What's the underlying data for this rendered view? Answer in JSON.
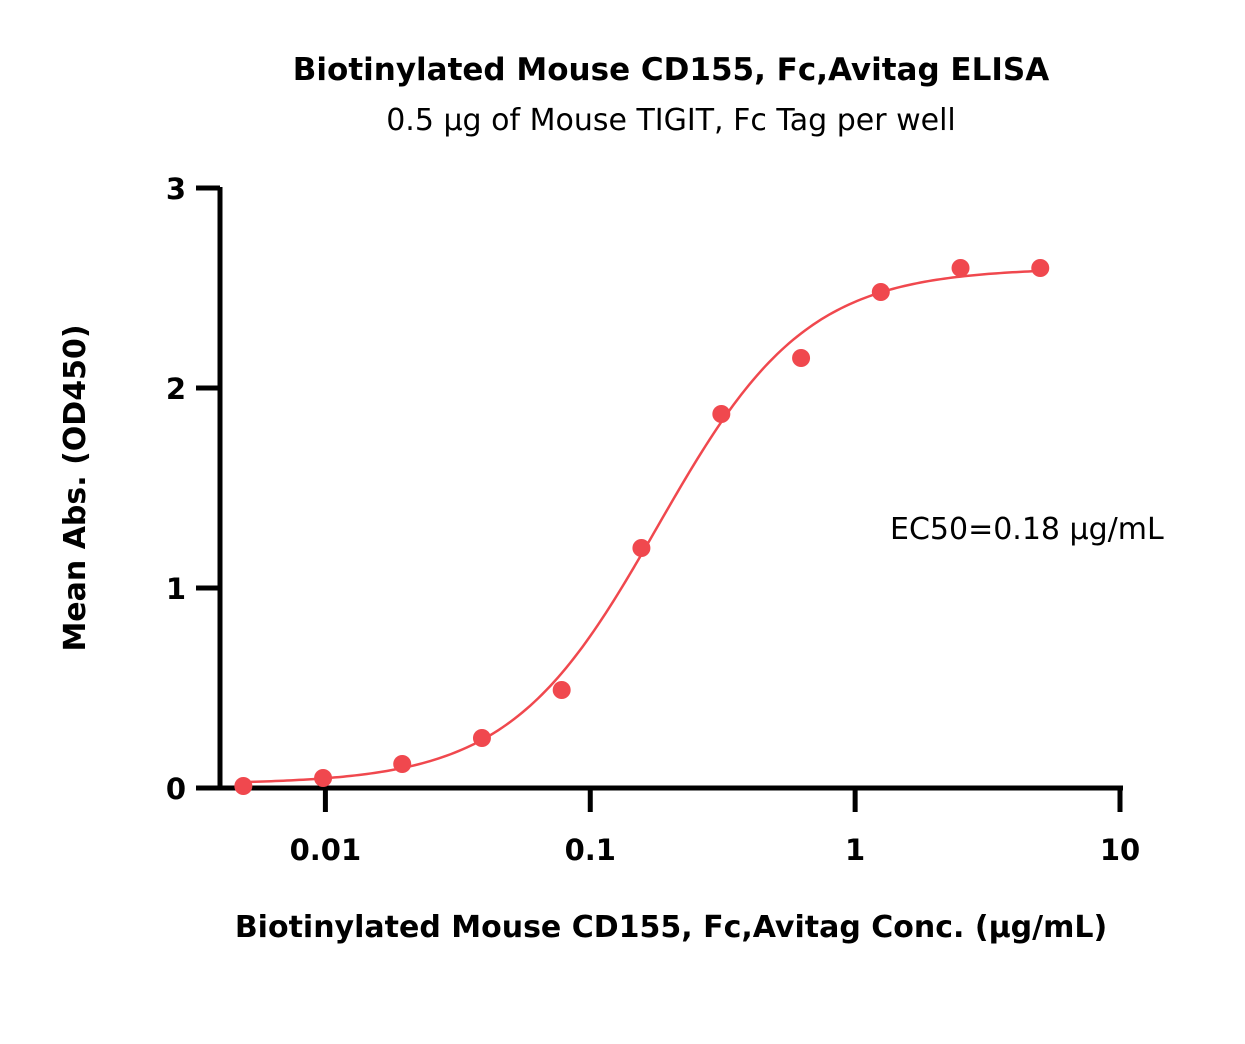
{
  "chart_data": {
    "type": "scatter",
    "title": "Biotinylated Mouse CD155, Fc,Avitag ELISA",
    "subtitle": "0.5 µg of Mouse TIGIT, Fc Tag per well",
    "xlabel": "Biotinylated Mouse CD155, Fc,Avitag Conc. (µg/mL)",
    "ylabel": "Mean Abs. (OD450)",
    "x_scale": "log",
    "xlim": [
      0.004,
      10
    ],
    "ylim": [
      0,
      3
    ],
    "x_ticks": [
      {
        "value": 0.01,
        "label": "0.01"
      },
      {
        "value": 0.1,
        "label": "0.1"
      },
      {
        "value": 1,
        "label": "1"
      },
      {
        "value": 10,
        "label": "10"
      }
    ],
    "y_ticks": [
      {
        "value": 0,
        "label": "0"
      },
      {
        "value": 1,
        "label": "1"
      },
      {
        "value": 2,
        "label": "2"
      },
      {
        "value": 3,
        "label": "3"
      }
    ],
    "grid": false,
    "series": [
      {
        "color": "#f0484e",
        "points": [
          {
            "x": 0.0049,
            "y": 0.01
          },
          {
            "x": 0.0098,
            "y": 0.05
          },
          {
            "x": 0.0195,
            "y": 0.12
          },
          {
            "x": 0.039,
            "y": 0.25
          },
          {
            "x": 0.078,
            "y": 0.49
          },
          {
            "x": 0.156,
            "y": 1.2
          },
          {
            "x": 0.3125,
            "y": 1.87
          },
          {
            "x": 0.625,
            "y": 2.15
          },
          {
            "x": 1.25,
            "y": 2.48
          },
          {
            "x": 2.5,
            "y": 2.6
          },
          {
            "x": 5,
            "y": 2.6
          }
        ],
        "fit": {
          "model": "4PL",
          "bottom": 0.02,
          "top": 2.6,
          "ec50": 0.18,
          "hill": 1.55
        }
      }
    ],
    "annotation": "EC50=0.18 µg/mL"
  }
}
